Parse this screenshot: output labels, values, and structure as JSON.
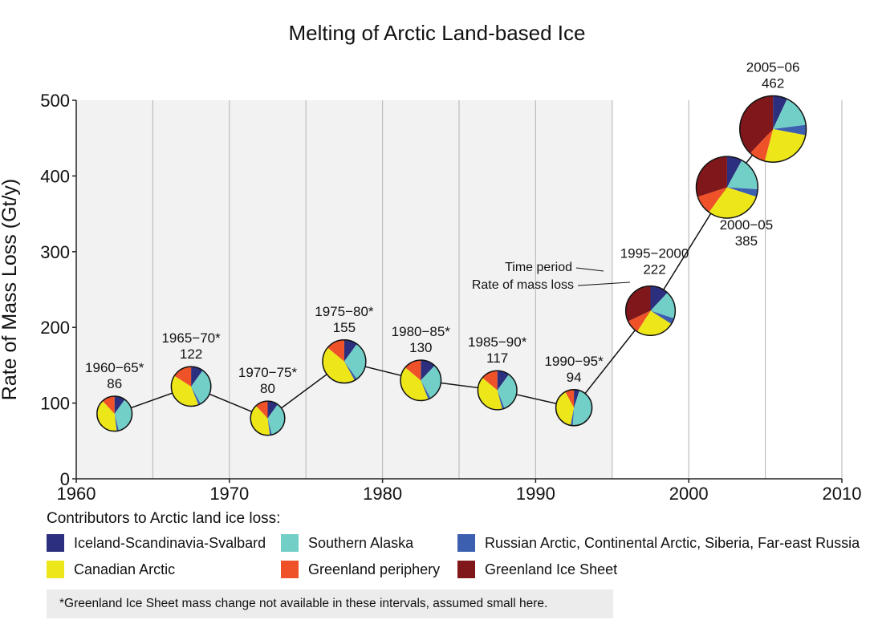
{
  "chart_data": {
    "type": "scatter",
    "title": "Melting of Arctic Land-based Ice",
    "ylabel": "Rate of Mass Loss (Gt/y)",
    "xlabel": "",
    "xlim": [
      1960,
      2010
    ],
    "ylim": [
      0,
      500
    ],
    "x_ticks": [
      "1960",
      "1970",
      "1980",
      "1990",
      "2000",
      "2010"
    ],
    "y_ticks": [
      "0",
      "100",
      "200",
      "300",
      "400",
      "500"
    ],
    "grid": "vertical every 5 years",
    "points": [
      {
        "period": "1960−65*",
        "value_label": "86",
        "x": 1962.5,
        "y": 86,
        "shares": [
          0.1,
          0.36,
          0.02,
          0.4,
          0.12,
          0.0
        ]
      },
      {
        "period": "1965−70*",
        "value_label": "122",
        "x": 1967.5,
        "y": 122,
        "shares": [
          0.1,
          0.32,
          0.02,
          0.4,
          0.16,
          0.0
        ]
      },
      {
        "period": "1970−75*",
        "value_label": "80",
        "x": 1972.5,
        "y": 80,
        "shares": [
          0.1,
          0.36,
          0.02,
          0.4,
          0.12,
          0.0
        ]
      },
      {
        "period": "1975−80*",
        "value_label": "155",
        "x": 1977.5,
        "y": 155,
        "shares": [
          0.1,
          0.3,
          0.02,
          0.44,
          0.14,
          0.0
        ]
      },
      {
        "period": "1980−85*",
        "value_label": "130",
        "x": 1982.5,
        "y": 130,
        "shares": [
          0.12,
          0.3,
          0.02,
          0.42,
          0.14,
          0.0
        ]
      },
      {
        "period": "1985−90*",
        "value_label": "117",
        "x": 1987.5,
        "y": 117,
        "shares": [
          0.1,
          0.34,
          0.02,
          0.4,
          0.14,
          0.0
        ]
      },
      {
        "period": "1990−95*",
        "value_label": "94",
        "x": 1992.5,
        "y": 94,
        "shares": [
          0.05,
          0.46,
          0.02,
          0.39,
          0.08,
          0.0
        ]
      },
      {
        "period": "1995−2000",
        "value_label": "222",
        "x": 1997.5,
        "y": 222,
        "shares": [
          0.12,
          0.18,
          0.04,
          0.25,
          0.09,
          0.32
        ]
      },
      {
        "period": "2000−05",
        "value_label": "385",
        "x": 2002.5,
        "y": 385,
        "shares": [
          0.08,
          0.18,
          0.04,
          0.3,
          0.1,
          0.3
        ]
      },
      {
        "period": "2005−06",
        "value_label": "462",
        "x": 2005.5,
        "y": 462,
        "shares": [
          0.07,
          0.16,
          0.05,
          0.26,
          0.08,
          0.38
        ]
      }
    ],
    "annotations": {
      "time_period": "Time period",
      "rate_of_mass_loss": "Rate of mass loss"
    },
    "series": [
      {
        "name": "Iceland-Scandinavia-Svalbard",
        "color": "#2b2f7e"
      },
      {
        "name": "Southern Alaska",
        "color": "#72cfc8"
      },
      {
        "name": "Russian Arctic, Continental Arctic, Siberia, Far-east Russia",
        "color": "#3c5fb0"
      },
      {
        "name": "Canadian Arctic",
        "color": "#ede71a"
      },
      {
        "name": "Greenland periphery",
        "color": "#ef5128"
      },
      {
        "name": "Greenland Ice Sheet",
        "color": "#7f171b"
      }
    ],
    "legend_title": "Contributors to Arctic land ice loss:",
    "footnote": "*Greenland Ice Sheet mass change not available in these intervals, assumed small here."
  }
}
